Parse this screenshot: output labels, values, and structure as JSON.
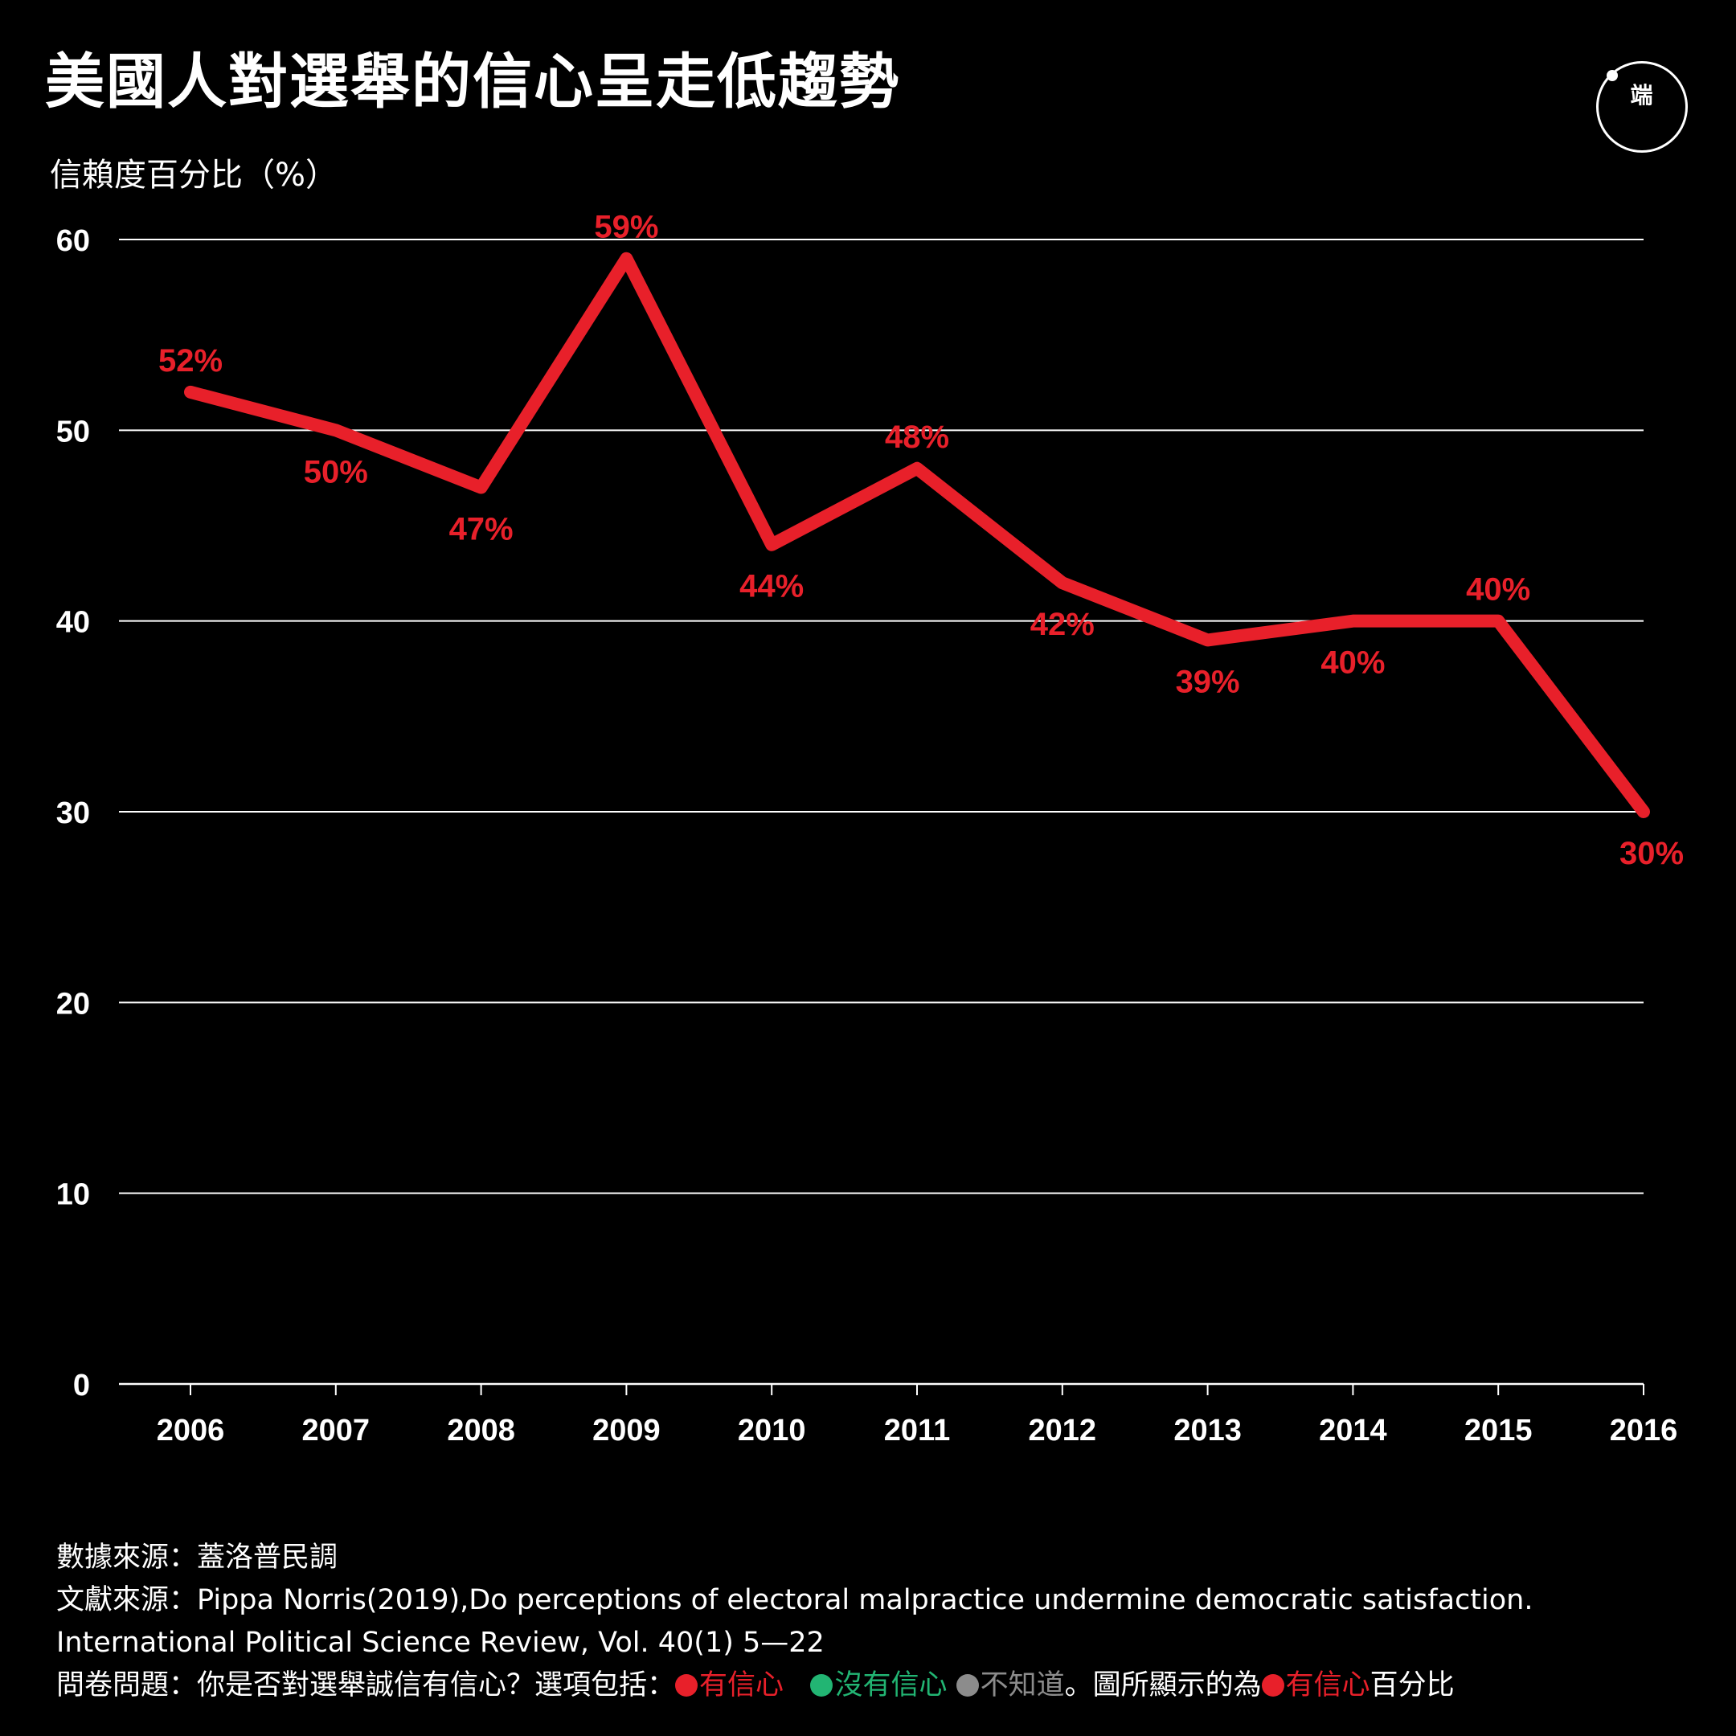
{
  "title": "美國人對選舉的信心呈走低趨勢",
  "logo_text": "端",
  "colors": {
    "background": "#000000",
    "line": "#e8202a",
    "grid": "#ffffff",
    "text": "#ffffff",
    "green": "#22b573",
    "gray": "#8c8c8c"
  },
  "chart_data": {
    "type": "line",
    "ylabel": "信賴度百分比（%）",
    "xlabel": "",
    "ylim": [
      0,
      60
    ],
    "yticks": [
      0,
      10,
      20,
      30,
      40,
      50,
      60
    ],
    "categories": [
      "2006",
      "2007",
      "2008",
      "2009",
      "2010",
      "2011",
      "2012",
      "2013",
      "2014",
      "2015",
      "2016"
    ],
    "series": [
      {
        "values": [
          52,
          50,
          47,
          59,
          44,
          48,
          42,
          39,
          40,
          40,
          30
        ],
        "labels": [
          "52%",
          "50%",
          "47%",
          "59%",
          "44%",
          "48%",
          "42%",
          "39%",
          "40%",
          "40%",
          "30%"
        ],
        "label_side": [
          "above",
          "below",
          "below",
          "above",
          "below",
          "above",
          "below",
          "below",
          "below",
          "above",
          "below"
        ]
      }
    ],
    "grid": true
  },
  "footer": {
    "source_label": "數據來源：",
    "source": "蓋洛普民調",
    "ref_label": "文獻來源：",
    "ref": "Pippa Norris(2019),Do perceptions of electoral malpractice undermine democratic satisfaction. International Political Science Review, Vol. 40(1) 5—22",
    "q_label": "問卷問題：",
    "question": "你是否對選舉誠信有信心？選項包括：",
    "opt_yes": "有信心",
    "opt_no": "沒有信心",
    "opt_unknown": "不知道",
    "shown_text": "。圖所顯示的為",
    "shown_opt": "有信心",
    "shown_suffix": "百分比"
  }
}
